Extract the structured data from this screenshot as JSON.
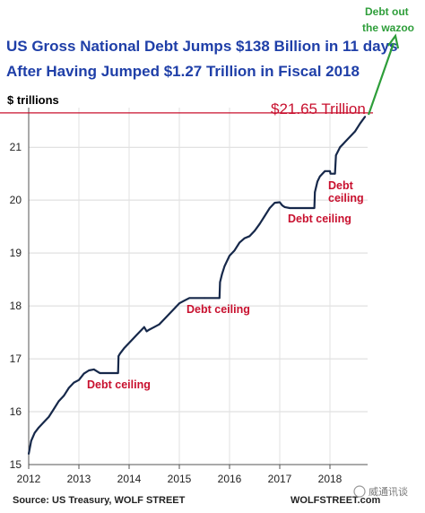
{
  "chart_data": {
    "type": "line",
    "title_line1": "US Gross National Debt Jumps $138 Billion in 11 days",
    "title_line2": "After Having Jumped $1.27 Trillion in Fiscal 2018",
    "ylabel": "$ trillions",
    "ylim": [
      15,
      21.75
    ],
    "xlim": [
      2012,
      2018.75
    ],
    "y_ticks": [
      "15",
      "16",
      "17",
      "18",
      "19",
      "20",
      "21"
    ],
    "x_ticks": [
      "2012",
      "2013",
      "2014",
      "2015",
      "2016",
      "2017",
      "2018"
    ],
    "grid": true,
    "series": [
      {
        "color": "#16284a",
        "x": [
          2012.0,
          2012.05,
          2012.12,
          2012.2,
          2012.3,
          2012.4,
          2012.5,
          2012.6,
          2012.7,
          2012.8,
          2012.9,
          2013.0,
          2013.1,
          2013.2,
          2013.3,
          2013.4,
          2013.42,
          2013.6,
          2013.78,
          2013.79,
          2013.82,
          2013.9,
          2014.0,
          2014.15,
          2014.3,
          2014.35,
          2014.4,
          2014.5,
          2014.6,
          2014.7,
          2014.8,
          2014.9,
          2015.0,
          2015.1,
          2015.2,
          2015.5,
          2015.8,
          2015.81,
          2015.85,
          2015.9,
          2016.0,
          2016.1,
          2016.2,
          2016.3,
          2016.4,
          2016.5,
          2016.6,
          2016.7,
          2016.8,
          2016.9,
          2017.0,
          2017.05,
          2017.1,
          2017.2,
          2017.3,
          2017.5,
          2017.69,
          2017.7,
          2017.75,
          2017.8,
          2017.85,
          2017.9,
          2018.0,
          2018.01,
          2018.1,
          2018.12,
          2018.2,
          2018.25,
          2018.3,
          2018.4,
          2018.5,
          2018.6,
          2018.7
        ],
        "y": [
          15.2,
          15.45,
          15.6,
          15.7,
          15.8,
          15.9,
          16.05,
          16.2,
          16.3,
          16.45,
          16.55,
          16.6,
          16.72,
          16.78,
          16.8,
          16.74,
          16.73,
          16.73,
          16.73,
          17.05,
          17.1,
          17.2,
          17.3,
          17.45,
          17.6,
          17.52,
          17.55,
          17.6,
          17.65,
          17.75,
          17.85,
          17.95,
          18.05,
          18.1,
          18.15,
          18.15,
          18.15,
          18.45,
          18.6,
          18.75,
          18.95,
          19.05,
          19.2,
          19.28,
          19.32,
          19.42,
          19.55,
          19.7,
          19.85,
          19.95,
          19.96,
          19.9,
          19.87,
          19.85,
          19.85,
          19.85,
          19.85,
          20.15,
          20.35,
          20.45,
          20.5,
          20.55,
          20.55,
          20.5,
          20.5,
          20.85,
          21.0,
          21.05,
          21.1,
          21.2,
          21.3,
          21.45,
          21.58
        ]
      }
    ],
    "reference_line": {
      "value": 21.65,
      "color": "#c8102e",
      "label": "$21.65 Trillion"
    },
    "annotations": {
      "debt_ceiling_2013": "Debt ceiling",
      "debt_ceiling_2015": "Debt ceiling",
      "debt_ceiling_2017_line1": "Debt",
      "debt_ceiling_2017_line2": "ceiling",
      "debt_ceiling_2017b": "Debt ceiling",
      "wazoo_line1": "Debt out",
      "wazoo_line2": "the wazoo"
    },
    "source": "Source: US Treasury, WOLF STREET",
    "watermark": "WOLFSTREET.com",
    "wechat_mark": "威通讯谈"
  }
}
